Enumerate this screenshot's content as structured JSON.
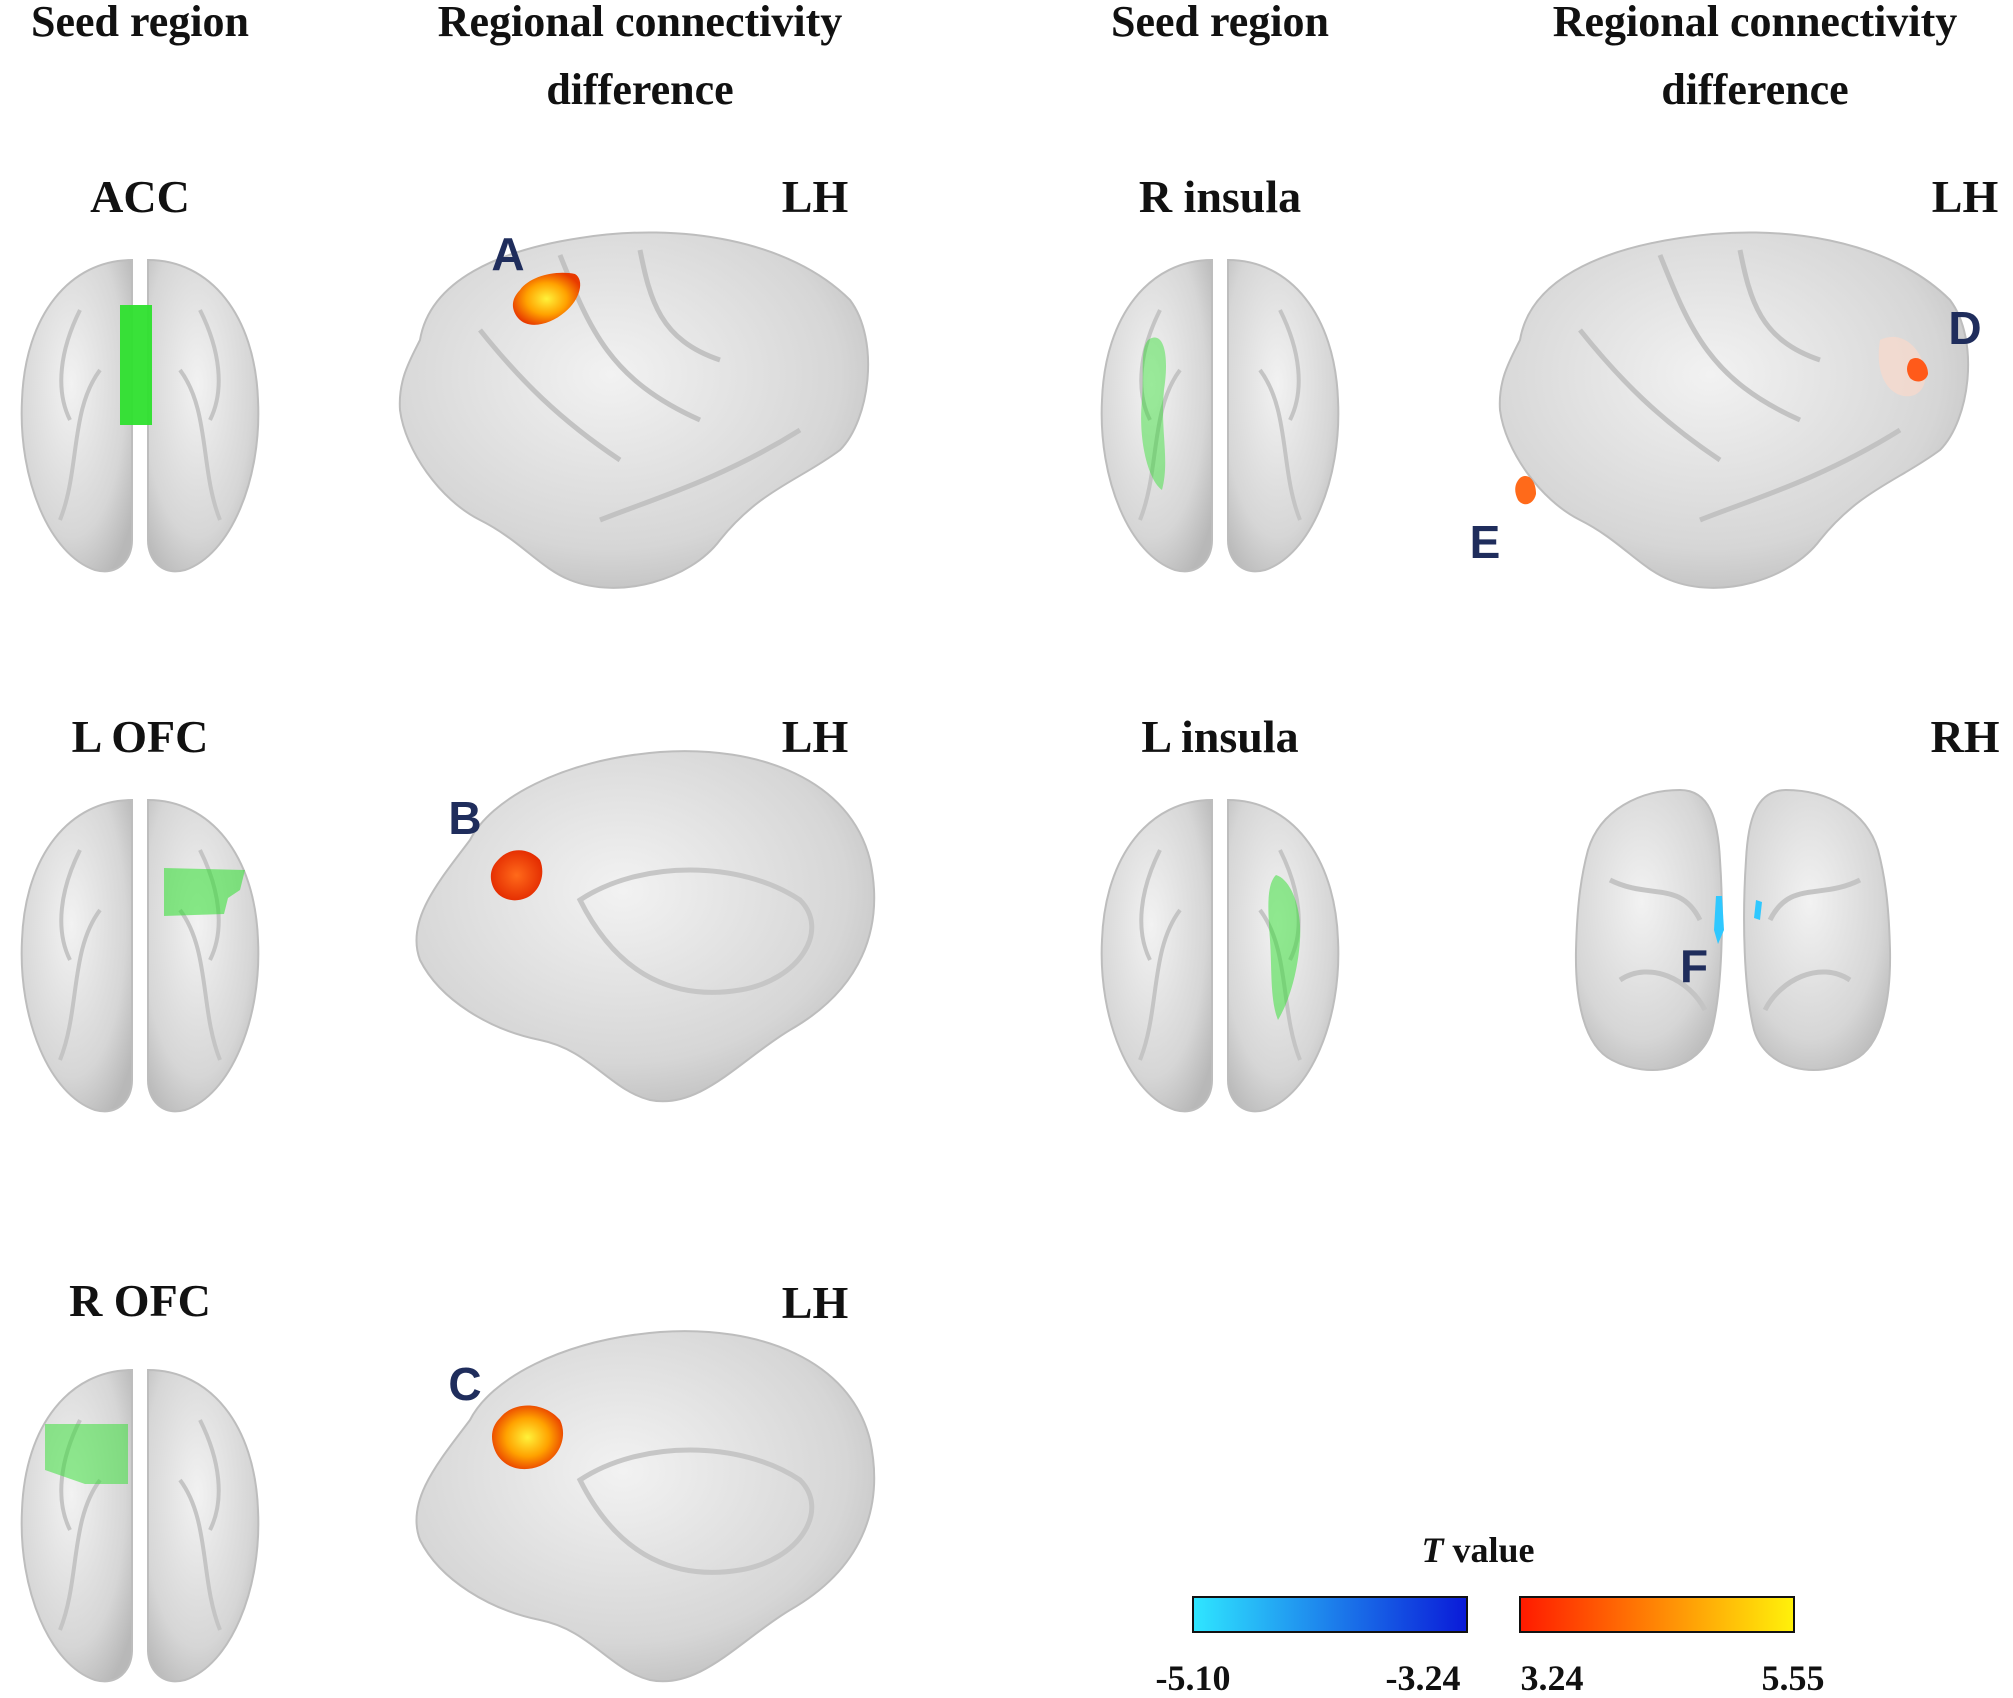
{
  "headers": {
    "seed_left": "Seed region",
    "diff_left_line1": "Regional connectivity",
    "diff_left_line2": "difference",
    "seed_right": "Seed region",
    "diff_right_line1": "Regional connectivity",
    "diff_right_line2": "difference"
  },
  "seeds": {
    "acc": "ACC",
    "l_ofc": "L OFC",
    "r_ofc": "R OFC",
    "r_insula": "R insula",
    "l_insula": "L insula"
  },
  "hemispheres": {
    "a": "LH",
    "b": "LH",
    "c": "LH",
    "de": "LH",
    "f": "RH"
  },
  "panels": {
    "a": "A",
    "b": "B",
    "c": "C",
    "d": "D",
    "e": "E",
    "f": "F"
  },
  "colorbar": {
    "title_italic": "T",
    "title_rest": " value",
    "neg_min": "-5.10",
    "neg_max": "-3.24",
    "pos_min": "3.24",
    "pos_max": "5.55",
    "colors": {
      "cyan": "#2fe6ff",
      "blue": "#0a1ad8",
      "red": "#ff1a00",
      "yellow": "#fff20a"
    }
  },
  "colors": {
    "seed_green": "#2ee02e",
    "brain_gray": "#d9d9d9",
    "label_navy": "#1f2d5c"
  }
}
